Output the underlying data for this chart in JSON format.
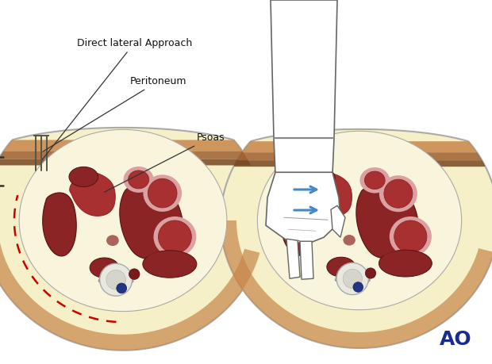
{
  "background_color": "#ffffff",
  "fig_width": 6.2,
  "fig_height": 4.59,
  "dpi": 100,
  "body_fill_color": "#f5f0c8",
  "inner_fill_color": "#f9f5dc",
  "muscle_brown1": "#c8864a",
  "muscle_brown2": "#a06030",
  "muscle_brown3": "#7a4820",
  "organ_dark_red": "#8b2525",
  "organ_med_red": "#a83030",
  "organ_pink_rim": "#dda0a0",
  "vertebra_fill": "#ddd8c8",
  "vertebra_edge": "#888877",
  "disc_fill": "#e8e8e0",
  "vessel_red": "#7a1a1a",
  "vessel_blue": "#223388",
  "peritoneum_dash_color": "#cc0000",
  "label_direct": "Direct lateral Approach",
  "label_peritoneum": "Peritoneum",
  "label_psoas": "Psoas",
  "text_color": "#111111",
  "arrow_blue": "#4488cc",
  "ao_color": "#1a2b8b",
  "line_color": "#333333"
}
